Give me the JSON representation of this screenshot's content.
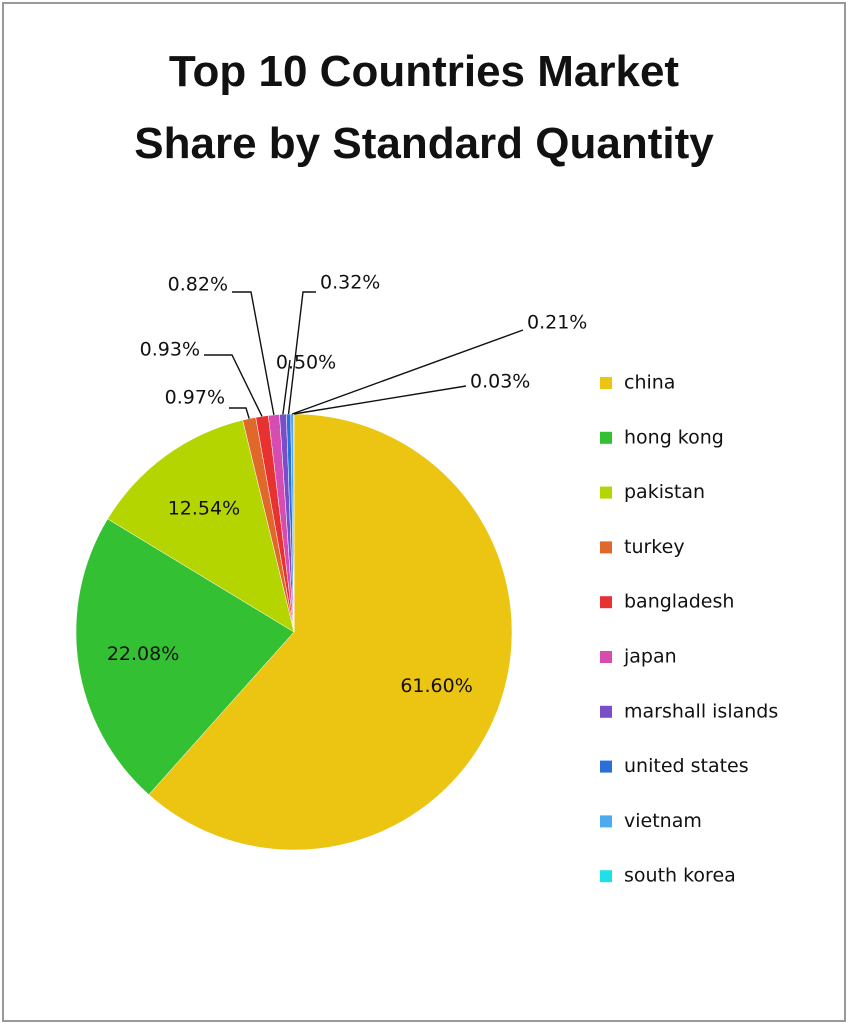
{
  "chart_data": {
    "type": "pie",
    "title": "Top 10 Countries Market Share by Standard Quantity",
    "categories": [
      "china",
      "hong kong",
      "pakistan",
      "turkey",
      "bangladesh",
      "japan",
      "marshall islands",
      "united states",
      "vietnam",
      "south korea"
    ],
    "values": [
      61.6,
      22.08,
      12.54,
      0.97,
      0.93,
      0.82,
      0.5,
      0.32,
      0.21,
      0.03
    ],
    "value_labels": [
      "61.60%",
      "22.08%",
      "12.54%",
      "0.97%",
      "0.93%",
      "0.82%",
      "0.50%",
      "0.32%",
      "0.21%",
      "0.03%"
    ],
    "colors": [
      "#ecc412",
      "#33c033",
      "#b4d500",
      "#e0682a",
      "#e83232",
      "#d64db2",
      "#7a4ec8",
      "#2a70d8",
      "#4eaaf0",
      "#1fe0ea"
    ],
    "legend": "right"
  }
}
